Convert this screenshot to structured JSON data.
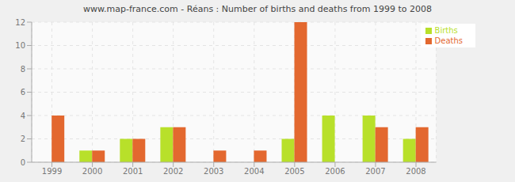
{
  "chart_data": {
    "type": "bar",
    "title": "www.map-france.com - Réans : Number of births and deaths from 1999 to 2008",
    "categories": [
      "1999",
      "2000",
      "2001",
      "2002",
      "2003",
      "2004",
      "2005",
      "2006",
      "2007",
      "2008"
    ],
    "series": [
      {
        "name": "Births",
        "color": "#b8e02a",
        "values": [
          0,
          1,
          2,
          3,
          0,
          0,
          2,
          4,
          4,
          2
        ]
      },
      {
        "name": "Deaths",
        "color": "#e3682f",
        "values": [
          4,
          1,
          2,
          3,
          1,
          1,
          12,
          0,
          3,
          3
        ]
      }
    ],
    "ylim": [
      0,
      12
    ],
    "yticks": [
      0,
      2,
      4,
      6,
      8,
      10,
      12
    ],
    "grid": true,
    "legend": "top-right"
  }
}
